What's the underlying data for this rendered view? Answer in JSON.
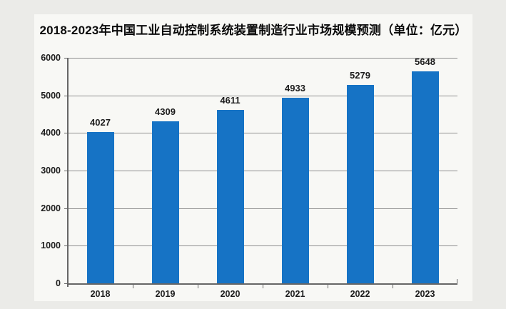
{
  "page": {
    "background_color": "#ebebe8",
    "panel_background_color": "#f8f8f5"
  },
  "chart_data": {
    "type": "bar",
    "title": "2018-2023年中国工业自动控制系统装置制造行业市场规模预测（单位：亿元）",
    "categories": [
      "2018",
      "2019",
      "2020",
      "2021",
      "2022",
      "2023"
    ],
    "values": [
      4027,
      4309,
      4611,
      4933,
      5279,
      5648
    ],
    "value_labels_shown": true,
    "xlabel": "",
    "ylabel": "",
    "ylim": [
      0,
      6000
    ],
    "yticks": [
      0,
      1000,
      2000,
      3000,
      4000,
      5000,
      6000
    ],
    "grid": "horizontal",
    "legend_position": "none",
    "bar_color": "#1673c5",
    "grid_color": "#8f8f8f",
    "axis_color": "#666666",
    "text_color": "#1c1c1c",
    "title_color": "#0a0a0a"
  }
}
